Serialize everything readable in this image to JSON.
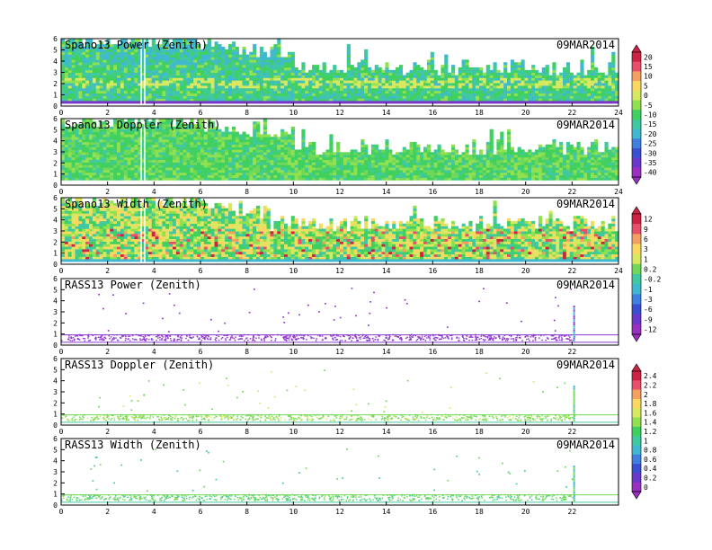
{
  "panels": [
    {
      "title": "Spano13 Power (Zenith)",
      "date": "09MAR2014",
      "kind": "power",
      "xticks": [
        "0",
        "2",
        "4",
        "6",
        "8",
        "10",
        "12",
        "14",
        "16",
        "18",
        "20",
        "22",
        "24"
      ],
      "yticks": [
        "0",
        "1",
        "2",
        "3",
        "4",
        "5",
        "6"
      ]
    },
    {
      "title": "Spano13 Doppler (Zenith)",
      "date": "09MAR2014",
      "kind": "doppler",
      "xticks": [
        "0",
        "2",
        "4",
        "6",
        "8",
        "10",
        "12",
        "14",
        "16",
        "18",
        "20",
        "22",
        "24"
      ],
      "yticks": [
        "0",
        "1",
        "2",
        "3",
        "4",
        "5",
        "6"
      ]
    },
    {
      "title": "Spano13 Width (Zenith)",
      "date": "09MAR2014",
      "kind": "width",
      "xticks": [
        "0",
        "2",
        "4",
        "6",
        "8",
        "10",
        "12",
        "14",
        "16",
        "18",
        "20",
        "22",
        "24"
      ],
      "yticks": [
        "0",
        "1",
        "2",
        "3",
        "4",
        "5",
        "6"
      ]
    },
    {
      "title": "RASS13 Power (Zenith)",
      "date": "09MAR2014",
      "kind": "rpower",
      "xticks": [
        "0",
        "2",
        "4",
        "6",
        "8",
        "10",
        "12",
        "14",
        "16",
        "18",
        "20",
        "22"
      ],
      "yticks": [
        "0",
        "1",
        "2",
        "3",
        "4",
        "5",
        "6"
      ]
    },
    {
      "title": "RASS13 Doppler (Zenith)",
      "date": "09MAR2014",
      "kind": "rdoppler",
      "xticks": [
        "0",
        "2",
        "4",
        "6",
        "8",
        "10",
        "12",
        "14",
        "16",
        "18",
        "20",
        "22"
      ],
      "yticks": [
        "0",
        "1",
        "2",
        "3",
        "4",
        "5",
        "6"
      ]
    },
    {
      "title": "RASS13 Width (Zenith)",
      "date": "09MAR2014",
      "kind": "rwidth",
      "xticks": [
        "0",
        "2",
        "4",
        "6",
        "8",
        "10",
        "12",
        "14",
        "16",
        "18",
        "20",
        "22"
      ],
      "yticks": [
        "0",
        "1",
        "2",
        "3",
        "4",
        "5",
        "6"
      ]
    }
  ],
  "colorbars": [
    {
      "labels": [
        "20",
        "15",
        "10",
        "5",
        "0",
        "-5",
        "-10",
        "-15",
        "-20",
        "-25",
        "-30",
        "-35",
        "-40"
      ],
      "colors": [
        "#cc2244",
        "#e8506a",
        "#f4a060",
        "#f8d860",
        "#d8e860",
        "#90e050",
        "#40d060",
        "#40c8a0",
        "#40b8d0",
        "#4080e0",
        "#3a50d0",
        "#6a38c8",
        "#9a30c0"
      ]
    },
    {
      "labels": [
        "12",
        "9",
        "6",
        "3",
        "1",
        "0.2",
        "-0.2",
        "-1",
        "-3",
        "-6",
        "-9",
        "-12"
      ],
      "colors": [
        "#cc2244",
        "#e8506a",
        "#f4a060",
        "#f8d860",
        "#d8e860",
        "#70d858",
        "#40c8a0",
        "#40b8d0",
        "#4080e0",
        "#3a50d0",
        "#6a38c8",
        "#9a30c0"
      ]
    },
    {
      "labels": [
        "2.4",
        "2.2",
        "2",
        "1.8",
        "1.6",
        "1.4",
        "1.2",
        "1",
        "0.8",
        "0.6",
        "0.4",
        "0.2",
        "0"
      ],
      "colors": [
        "#cc2244",
        "#e8506a",
        "#f4a060",
        "#f8d860",
        "#d8e860",
        "#90e050",
        "#40d060",
        "#40c8a0",
        "#40b8d0",
        "#4080e0",
        "#3a50d0",
        "#6a38c8",
        "#9a30c0"
      ]
    }
  ],
  "chart_data": [
    {
      "type": "heatmap",
      "title": "Spano13 Power (Zenith)",
      "annotation": "09MAR2014",
      "xlim": [
        0,
        24
      ],
      "ylim": [
        0,
        6
      ],
      "colorbar": [
        -40,
        20
      ],
      "note_values": "field of mostly -20 to 0, higher (0 to 10) near 2 km, lowest near 0.5 km"
    },
    {
      "type": "heatmap",
      "title": "Spano13 Doppler (Zenith)",
      "annotation": "09MAR2014",
      "xlim": [
        0,
        24
      ],
      "ylim": [
        0,
        6
      ],
      "colorbar": [
        -12,
        12
      ]
    },
    {
      "type": "heatmap",
      "title": "Spano13 Width (Zenith)",
      "annotation": "09MAR2014",
      "xlim": [
        0,
        24
      ],
      "ylim": [
        0,
        6
      ],
      "colorbar": [
        0,
        2.4
      ]
    },
    {
      "type": "scatter",
      "title": "RASS13 Power (Zenith)",
      "annotation": "09MAR2014",
      "xlim": [
        0,
        24
      ],
      "ylim": [
        0,
        6
      ],
      "colorbar": [
        -12,
        12
      ]
    },
    {
      "type": "scatter",
      "title": "RASS13 Doppler (Zenith)",
      "annotation": "09MAR2014",
      "xlim": [
        0,
        24
      ],
      "ylim": [
        0,
        6
      ],
      "colorbar": [
        0,
        2.4
      ]
    },
    {
      "type": "scatter",
      "title": "RASS13 Width (Zenith)",
      "annotation": "09MAR2014",
      "xlim": [
        0,
        24
      ],
      "ylim": [
        0,
        6
      ],
      "colorbar": [
        0,
        2.4
      ]
    }
  ]
}
